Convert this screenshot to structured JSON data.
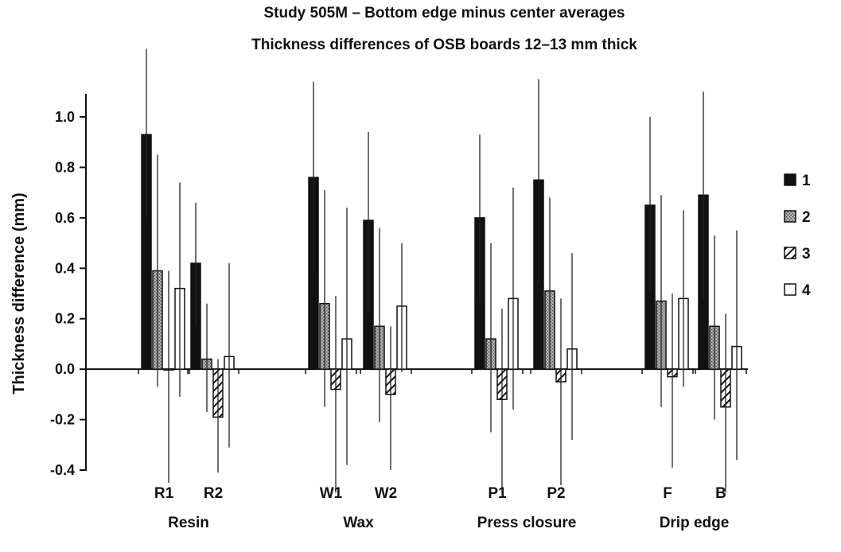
{
  "chart_data": {
    "type": "bar",
    "title": "Study 505M – Bottom edge minus center averages",
    "subtitle": "Thickness differences of OSB boards 12–13 mm thick",
    "ylabel": "Thickness difference (mm)",
    "xlabel": "",
    "ylim": [
      -0.4,
      1.0
    ],
    "yticks": [
      "1.0",
      "0.8",
      "0.6",
      "0.4",
      "0.2",
      "0.0",
      "-0.2",
      "-0.4"
    ],
    "categories": [
      "R1",
      "R2",
      "W1",
      "W2",
      "P1",
      "P2",
      "F",
      "B"
    ],
    "groups": [
      {
        "label": "Resin",
        "categories": [
          "R1",
          "R2"
        ]
      },
      {
        "label": "Wax",
        "categories": [
          "W1",
          "W2"
        ]
      },
      {
        "label": "Press closure",
        "categories": [
          "P1",
          "P2"
        ]
      },
      {
        "label": "Drip edge",
        "categories": [
          "F",
          "B"
        ]
      }
    ],
    "series": [
      {
        "name": "1",
        "pattern": "solid-black",
        "values": [
          0.93,
          0.42,
          0.76,
          0.59,
          0.6,
          0.75,
          0.65,
          0.69
        ],
        "error_low": [
          0.6,
          0.17,
          0.38,
          0.22,
          0.26,
          0.34,
          0.3,
          0.28
        ],
        "error_high": [
          1.27,
          0.66,
          1.14,
          0.94,
          0.93,
          1.15,
          1.0,
          1.1
        ]
      },
      {
        "name": "2",
        "pattern": "gray-stipple",
        "values": [
          0.39,
          0.04,
          0.26,
          0.17,
          0.12,
          0.31,
          0.27,
          0.17
        ],
        "error_low": [
          -0.07,
          -0.17,
          -0.15,
          -0.21,
          -0.25,
          0.0,
          -0.15,
          -0.2
        ],
        "error_high": [
          0.85,
          0.26,
          0.71,
          0.56,
          0.5,
          0.68,
          0.69,
          0.53
        ]
      },
      {
        "name": "3",
        "pattern": "diagonal-hatch",
        "values": [
          0.0,
          -0.19,
          -0.08,
          -0.1,
          -0.12,
          -0.05,
          -0.03,
          -0.15
        ],
        "error_low": [
          -0.45,
          -0.41,
          -0.49,
          -0.4,
          -0.49,
          -0.46,
          -0.39,
          -0.49
        ],
        "error_high": [
          0.39,
          0.04,
          0.29,
          0.17,
          0.24,
          0.28,
          0.3,
          0.22
        ]
      },
      {
        "name": "4",
        "pattern": "white",
        "values": [
          0.32,
          0.05,
          0.12,
          0.25,
          0.28,
          0.08,
          0.28,
          0.09
        ],
        "error_low": [
          -0.11,
          -0.31,
          -0.38,
          -0.01,
          -0.16,
          -0.28,
          -0.07,
          -0.36
        ],
        "error_high": [
          0.74,
          0.42,
          0.64,
          0.5,
          0.72,
          0.46,
          0.63,
          0.55
        ]
      }
    ],
    "legend": {
      "position": "right",
      "entries": [
        "1",
        "2",
        "3",
        "4"
      ]
    },
    "grid": false
  }
}
